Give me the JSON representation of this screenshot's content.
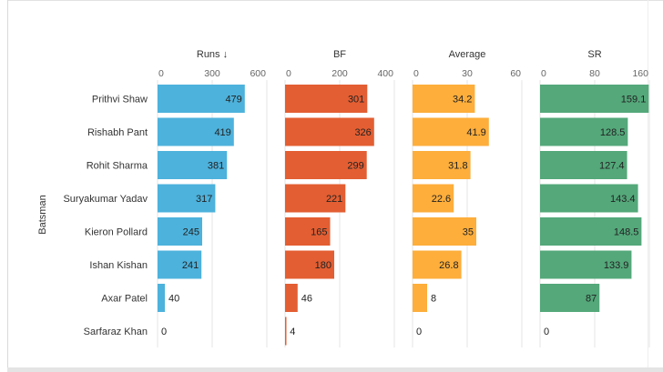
{
  "chart_data": {
    "type": "bar",
    "orientation": "horizontal",
    "row_axis_label": "Batsman",
    "categories": [
      "Prithvi Shaw",
      "Rishabh Pant",
      "Rohit Sharma",
      "Suryakumar Yadav",
      "Kieron Pollard",
      "Ishan Kishan",
      "Axar Patel",
      "Sarfaraz Khan"
    ],
    "panels": [
      {
        "title": "Runs",
        "sort_indicator": "↓",
        "color": "#4db2dc",
        "xlim": [
          0,
          600
        ],
        "ticks": [
          "0",
          "300",
          "600"
        ],
        "values": [
          479,
          419,
          381,
          317,
          245,
          241,
          40,
          0
        ]
      },
      {
        "title": "BF",
        "color": "#e35e32",
        "xlim": [
          0,
          400
        ],
        "ticks": [
          "0",
          "200",
          "400"
        ],
        "values": [
          301,
          326,
          299,
          221,
          165,
          180,
          46,
          4
        ]
      },
      {
        "title": "Average",
        "color": "#fdae3b",
        "xlim": [
          0,
          60
        ],
        "ticks": [
          "0",
          "30",
          "60"
        ],
        "values": [
          34.2,
          41.9,
          31.8,
          22.6,
          35,
          26.8,
          8,
          0
        ]
      },
      {
        "title": "SR",
        "color": "#54a87a",
        "xlim": [
          0,
          160
        ],
        "ticks": [
          "0",
          "80",
          "160"
        ],
        "values": [
          159.1,
          128.5,
          127.4,
          143.4,
          148.5,
          133.9,
          87,
          0
        ]
      }
    ],
    "grid": true,
    "legend": "none"
  }
}
